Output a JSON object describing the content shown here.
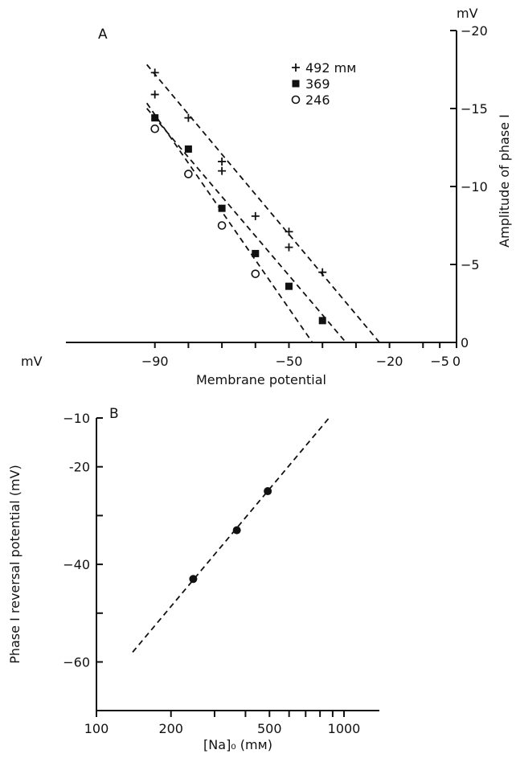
{
  "chart_data": [
    {
      "type": "scatter",
      "panel_label": "A",
      "xlabel": "Membrane potential",
      "ylabel": "Amplitude of phase I",
      "x_unit": "mV",
      "y_unit": "mV",
      "xlim": [
        -100,
        0
      ],
      "ylim": [
        0,
        -20
      ],
      "x_ticks": [
        -90,
        -80,
        -70,
        -60,
        -50,
        -40,
        -30,
        -20,
        -10,
        -5,
        0
      ],
      "x_tick_labels": [
        {
          "value": -90,
          "label": "−90"
        },
        {
          "value": -50,
          "label": "−50"
        },
        {
          "value": -20,
          "label": "−20"
        },
        {
          "value": -5,
          "label": "−5"
        },
        {
          "value": 0,
          "label": "0"
        }
      ],
      "y_ticks": [
        -20,
        -15,
        -10,
        -5,
        0
      ],
      "y_tick_labels": [
        {
          "value": -20,
          "label": "−20"
        },
        {
          "value": -15,
          "label": "−15"
        },
        {
          "value": -10,
          "label": "−10"
        },
        {
          "value": -5,
          "label": "−5"
        },
        {
          "value": 0,
          "label": "0"
        }
      ],
      "legend_position": "top-right",
      "series": [
        {
          "name": "492 mM",
          "legend_label": "492 mм",
          "marker": "plus",
          "x": [
            -90,
            -90,
            -80,
            -70,
            -70,
            -60,
            -50,
            -50,
            -40
          ],
          "y": [
            -17.3,
            -15.9,
            -14.4,
            -11.6,
            -11.0,
            -8.1,
            -7.1,
            -6.1,
            -4.5
          ],
          "fit": [
            [
              -90,
              -17.2
            ],
            [
              -23,
              0
            ]
          ]
        },
        {
          "name": "369",
          "legend_label": "369",
          "marker": "square",
          "x": [
            -90,
            -80,
            -70,
            -60,
            -50,
            -40
          ],
          "y": [
            -14.4,
            -12.4,
            -8.6,
            -5.7,
            -3.6,
            -1.4
          ],
          "fit": [
            [
              -90,
              -14.4
            ],
            [
              -33,
              0
            ]
          ]
        },
        {
          "name": "246",
          "legend_label": "246",
          "marker": "circle",
          "x": [
            -90,
            -80,
            -70,
            -60
          ],
          "y": [
            -13.7,
            -10.8,
            -7.5,
            -4.4
          ],
          "fit": [
            [
              -90,
              -14.6
            ],
            [
              -43,
              0
            ]
          ]
        }
      ]
    },
    {
      "type": "scatter",
      "panel_label": "B",
      "xlabel": "[Na]₀ (mм)",
      "ylabel": "Phase I reversal potential (mV)",
      "x_scale": "log",
      "xlim": [
        100,
        1500
      ],
      "ylim": [
        -70,
        -10
      ],
      "x_ticks": [
        100,
        200,
        300,
        400,
        500,
        600,
        700,
        800,
        900,
        1000
      ],
      "x_tick_labels": [
        {
          "value": 100,
          "label": "100"
        },
        {
          "value": 200,
          "label": "200"
        },
        {
          "value": 500,
          "label": "500"
        },
        {
          "value": 1000,
          "label": "1000"
        }
      ],
      "y_ticks": [
        -10,
        -20,
        -30,
        -40,
        -50,
        -60
      ],
      "y_tick_labels": [
        {
          "value": -10,
          "label": "−10"
        },
        {
          "value": -20,
          "label": "-20"
        },
        {
          "value": -40,
          "label": "−40"
        },
        {
          "value": -60,
          "label": "−60"
        }
      ],
      "series": [
        {
          "name": "reversal potential",
          "marker": "dot",
          "x": [
            246,
            369,
            492
          ],
          "y": [
            -43,
            -33,
            -25
          ],
          "fit": [
            [
              140,
              -58
            ],
            [
              870,
              -10
            ]
          ]
        }
      ]
    }
  ]
}
